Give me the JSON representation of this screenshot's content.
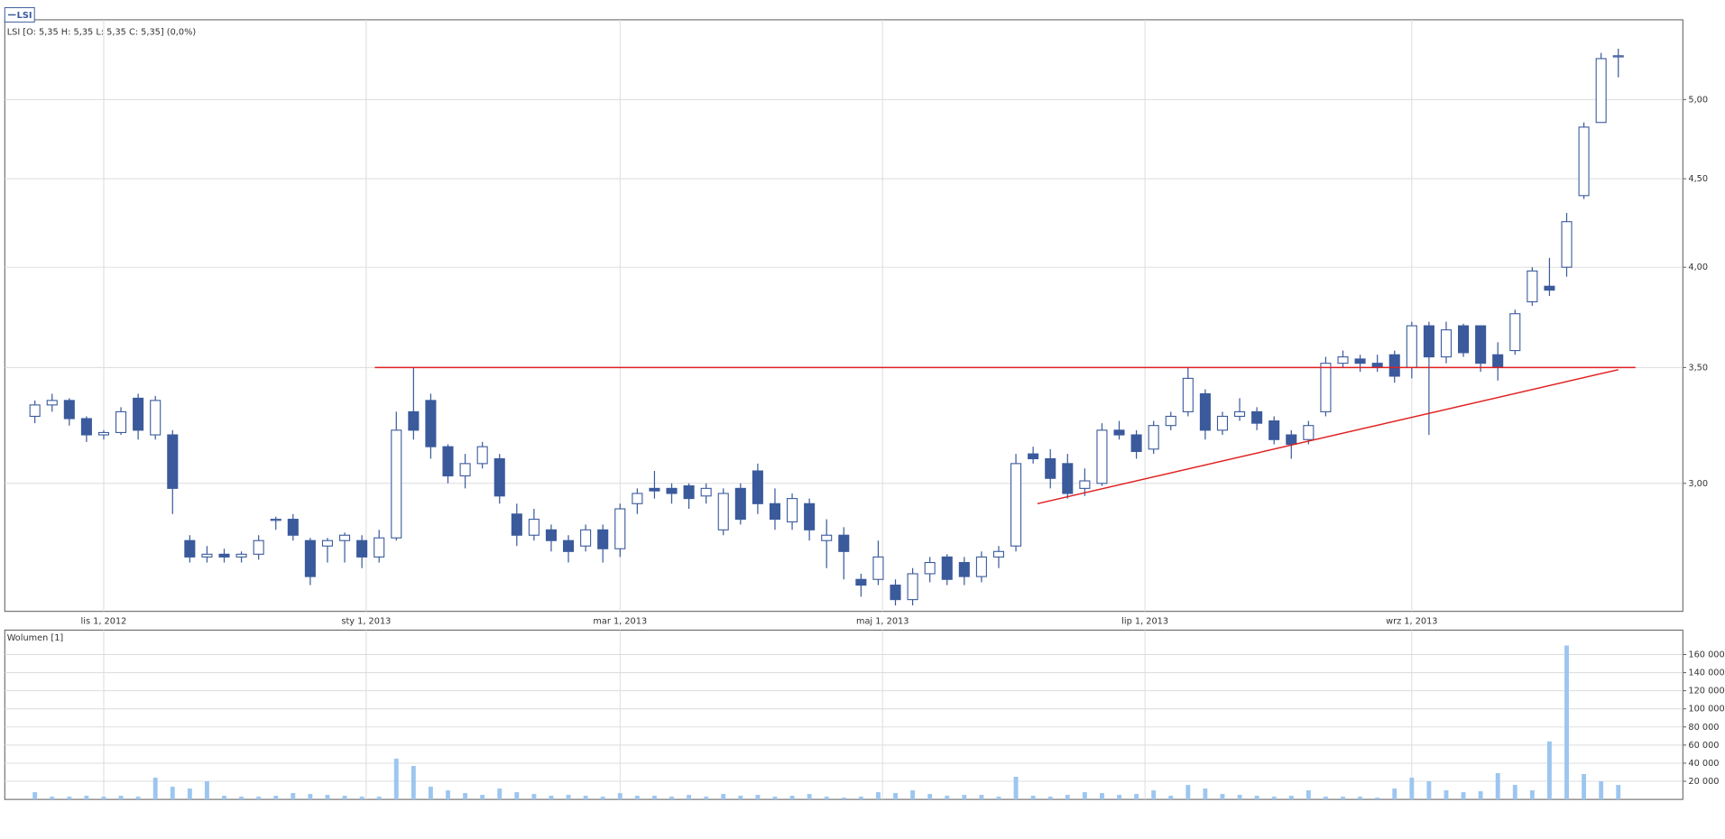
{
  "chart_data": [
    {
      "type": "candlestick",
      "name": "LSI",
      "info": "LSI [O: 5,35 H: 5,35 L: 5,35 C: 5,35] (0,0%)",
      "color": "#3a5a9c",
      "log_scale": true,
      "grid": true,
      "x": [
        "2012-10-16",
        "2012-10-20",
        "2012-10-24",
        "2012-10-28",
        "2012-11-01",
        "2012-11-05",
        "2012-11-09",
        "2012-11-13",
        "2012-11-17",
        "2012-11-21",
        "2012-11-25",
        "2012-11-29",
        "2012-12-03",
        "2012-12-07",
        "2012-12-11",
        "2012-12-15",
        "2012-12-19",
        "2012-12-23",
        "2012-12-27",
        "2012-12-31",
        "2013-01-04",
        "2013-01-08",
        "2013-01-12",
        "2013-01-16",
        "2013-01-20",
        "2013-01-24",
        "2013-01-28",
        "2013-02-01",
        "2013-02-05",
        "2013-02-09",
        "2013-02-13",
        "2013-02-17",
        "2013-02-21",
        "2013-02-25",
        "2013-03-01",
        "2013-03-05",
        "2013-03-09",
        "2013-03-13",
        "2013-03-17",
        "2013-03-21",
        "2013-03-25",
        "2013-03-29",
        "2013-04-02",
        "2013-04-06",
        "2013-04-10",
        "2013-04-14",
        "2013-04-18",
        "2013-04-22",
        "2013-04-26",
        "2013-04-30",
        "2013-05-04",
        "2013-05-08",
        "2013-05-12",
        "2013-05-16",
        "2013-05-20",
        "2013-05-24",
        "2013-05-28",
        "2013-06-01",
        "2013-06-05",
        "2013-06-09",
        "2013-06-13",
        "2013-06-17",
        "2013-06-21",
        "2013-06-25",
        "2013-06-29",
        "2013-07-03",
        "2013-07-07",
        "2013-07-11",
        "2013-07-15",
        "2013-07-19",
        "2013-07-23",
        "2013-07-27",
        "2013-07-31",
        "2013-08-04",
        "2013-08-08",
        "2013-08-12",
        "2013-08-16",
        "2013-08-20",
        "2013-08-24",
        "2013-08-28",
        "2013-09-01",
        "2013-09-05",
        "2013-09-09",
        "2013-09-13",
        "2013-09-17",
        "2013-09-21",
        "2013-09-25",
        "2013-09-29",
        "2013-10-03",
        "2013-10-07",
        "2013-10-11",
        "2013-10-15",
        "2013-10-19"
      ],
      "open": [
        3.28,
        3.33,
        3.35,
        3.27,
        3.2,
        3.21,
        3.36,
        3.2,
        3.2,
        2.78,
        2.72,
        2.73,
        2.72,
        2.73,
        2.86,
        2.86,
        2.78,
        2.76,
        2.78,
        2.78,
        2.72,
        2.79,
        3.3,
        3.35,
        3.15,
        3.03,
        3.08,
        3.1,
        2.88,
        2.8,
        2.82,
        2.78,
        2.76,
        2.82,
        2.75,
        2.92,
        2.98,
        2.98,
        2.99,
        2.95,
        2.82,
        2.98,
        3.05,
        2.92,
        2.85,
        2.92,
        2.78,
        2.8,
        2.64,
        2.64,
        2.62,
        2.57,
        2.66,
        2.72,
        2.7,
        2.65,
        2.72,
        2.76,
        3.12,
        3.1,
        3.08,
        2.98,
        3.0,
        3.22,
        3.2,
        3.14,
        3.24,
        3.3,
        3.38,
        3.22,
        3.28,
        3.3,
        3.26,
        3.2,
        3.18,
        3.3,
        3.52,
        3.54,
        3.52,
        3.56,
        3.5,
        3.7,
        3.55,
        3.7,
        3.7,
        3.56,
        3.58,
        3.82,
        3.9,
        4.0,
        4.4,
        4.85,
        5.3
      ],
      "high": [
        3.35,
        3.38,
        3.36,
        3.28,
        3.22,
        3.32,
        3.38,
        3.37,
        3.22,
        2.8,
        2.76,
        2.75,
        2.74,
        2.8,
        2.87,
        2.88,
        2.79,
        2.79,
        2.81,
        2.8,
        2.82,
        3.3,
        3.5,
        3.38,
        3.16,
        3.12,
        3.17,
        3.12,
        2.92,
        2.9,
        2.84,
        2.8,
        2.84,
        2.84,
        2.92,
        2.98,
        3.05,
        3.0,
        3.0,
        3.0,
        2.98,
        3.0,
        3.08,
        2.98,
        2.96,
        2.94,
        2.86,
        2.83,
        2.66,
        2.78,
        2.64,
        2.68,
        2.72,
        2.73,
        2.72,
        2.74,
        2.76,
        3.12,
        3.15,
        3.14,
        3.12,
        3.06,
        3.25,
        3.26,
        3.22,
        3.26,
        3.3,
        3.5,
        3.4,
        3.3,
        3.36,
        3.32,
        3.28,
        3.22,
        3.26,
        3.55,
        3.58,
        3.56,
        3.56,
        3.58,
        3.72,
        3.72,
        3.72,
        3.71,
        3.7,
        3.62,
        3.78,
        4.0,
        4.05,
        4.3,
        4.85,
        5.32,
        5.35
      ],
      "low": [
        3.25,
        3.3,
        3.24,
        3.17,
        3.18,
        3.2,
        3.18,
        3.18,
        2.88,
        2.7,
        2.7,
        2.7,
        2.7,
        2.71,
        2.82,
        2.78,
        2.62,
        2.7,
        2.7,
        2.68,
        2.7,
        2.78,
        3.18,
        3.1,
        3.0,
        2.98,
        3.06,
        2.92,
        2.76,
        2.78,
        2.74,
        2.7,
        2.74,
        2.7,
        2.72,
        2.88,
        2.94,
        2.92,
        2.9,
        2.92,
        2.8,
        2.84,
        2.88,
        2.82,
        2.82,
        2.78,
        2.68,
        2.64,
        2.58,
        2.62,
        2.55,
        2.55,
        2.63,
        2.62,
        2.62,
        2.63,
        2.68,
        2.74,
        3.08,
        2.98,
        2.94,
        2.95,
        2.99,
        3.18,
        3.1,
        3.12,
        3.22,
        3.28,
        3.18,
        3.2,
        3.26,
        3.22,
        3.16,
        3.1,
        3.16,
        3.28,
        3.5,
        3.48,
        3.48,
        3.43,
        3.45,
        3.2,
        3.52,
        3.55,
        3.48,
        3.44,
        3.56,
        3.8,
        3.85,
        3.95,
        4.38,
        4.85,
        5.15
      ],
      "close": [
        3.33,
        3.35,
        3.27,
        3.2,
        3.21,
        3.3,
        3.22,
        3.35,
        2.98,
        2.72,
        2.73,
        2.72,
        2.73,
        2.78,
        2.86,
        2.8,
        2.65,
        2.78,
        2.8,
        2.72,
        2.79,
        3.22,
        3.22,
        3.15,
        3.03,
        3.08,
        3.15,
        2.95,
        2.8,
        2.86,
        2.78,
        2.74,
        2.82,
        2.75,
        2.9,
        2.96,
        2.97,
        2.96,
        2.94,
        2.98,
        2.96,
        2.86,
        2.92,
        2.86,
        2.94,
        2.82,
        2.8,
        2.74,
        2.62,
        2.72,
        2.57,
        2.66,
        2.7,
        2.64,
        2.65,
        2.72,
        2.74,
        3.08,
        3.1,
        3.02,
        2.96,
        3.01,
        3.22,
        3.2,
        3.13,
        3.24,
        3.28,
        3.45,
        3.22,
        3.28,
        3.3,
        3.25,
        3.18,
        3.16,
        3.24,
        3.52,
        3.55,
        3.52,
        3.5,
        3.46,
        3.7,
        3.55,
        3.68,
        3.57,
        3.52,
        3.5,
        3.76,
        3.98,
        3.88,
        4.25,
        4.82,
        5.28,
        5.3
      ],
      "xlim": [
        "2012-10-09",
        "2013-11-03"
      ],
      "xticks": [
        {
          "value": "2012-11-01",
          "label": "lis 1, 2012"
        },
        {
          "value": "2013-01-01",
          "label": "sty 1, 2013"
        },
        {
          "value": "2013-03-01",
          "label": "mar 1, 2013"
        },
        {
          "value": "2013-05-01",
          "label": "maj 1, 2013"
        },
        {
          "value": "2013-07-01",
          "label": "lip 1, 2013"
        },
        {
          "value": "2013-09-01",
          "label": "wrz 1, 2013"
        }
      ],
      "ylim": [
        2.53,
        5.56
      ],
      "yticks": [
        {
          "value": 3,
          "label": "3,00"
        },
        {
          "value": 3.5,
          "label": "3,50"
        },
        {
          "value": 4,
          "label": "4,00"
        },
        {
          "value": 4.5,
          "label": "4,50"
        },
        {
          "value": 5,
          "label": "5,00"
        }
      ],
      "lines": [
        {
          "x": [
            "2013-01-03",
            "2013-10-23"
          ],
          "y": [
            3.5,
            3.5
          ],
          "color": "#e02020"
        },
        {
          "x": [
            "2013-06-06",
            "2013-10-19"
          ],
          "y": [
            2.92,
            3.49
          ],
          "color": "#e02020"
        }
      ]
    },
    {
      "type": "bar",
      "title": "Wolumen [1]",
      "color": "#9cc6f0",
      "grid": true,
      "values": [
        8000,
        3000,
        3000,
        4000,
        3000,
        4000,
        3000,
        24000,
        14000,
        12000,
        20000,
        4000,
        3000,
        3000,
        4000,
        7000,
        6000,
        5000,
        4000,
        3000,
        3000,
        45000,
        37000,
        14000,
        10000,
        7000,
        5000,
        12000,
        8000,
        6000,
        4000,
        5000,
        4000,
        3000,
        7000,
        4000,
        4000,
        3000,
        5000,
        3000,
        6000,
        4000,
        5000,
        3000,
        4000,
        6000,
        3000,
        2000,
        3000,
        8000,
        7000,
        10000,
        6000,
        4000,
        5000,
        5000,
        3000,
        25000,
        4000,
        3000,
        5000,
        8000,
        7000,
        5000,
        6000,
        10000,
        4000,
        16000,
        12000,
        6000,
        5000,
        4000,
        3000,
        4000,
        10000,
        3000,
        3000,
        3000,
        2000,
        12000,
        24000,
        20000,
        10000,
        8000,
        9000,
        29000,
        16000,
        10000,
        64000,
        170000,
        28000,
        20000,
        16000
      ],
      "ylim": [
        0,
        187000
      ],
      "yticks": [
        {
          "value": 20000,
          "label": "20 000"
        },
        {
          "value": 40000,
          "label": "40 000"
        },
        {
          "value": 60000,
          "label": "60 000"
        },
        {
          "value": 80000,
          "label": "80 000"
        },
        {
          "value": 100000,
          "label": "100 000"
        },
        {
          "value": 120000,
          "label": "120 000"
        },
        {
          "value": 140000,
          "label": "140 000"
        },
        {
          "value": 160000,
          "label": "160 000"
        }
      ]
    }
  ]
}
